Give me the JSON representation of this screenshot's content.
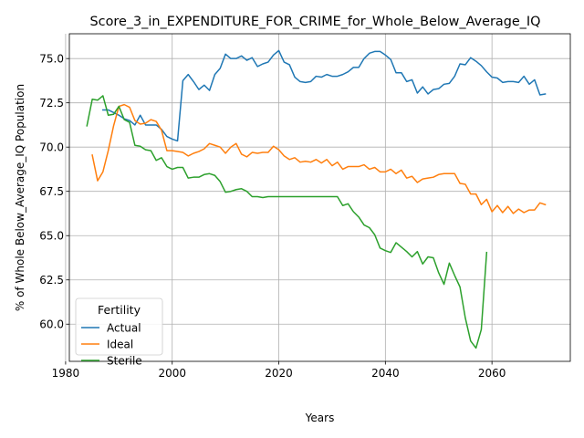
{
  "chart_data": {
    "type": "line",
    "title": "Score_3_in_EXPENDITURE_FOR_CRIME_for_Whole_Below_Average_IQ",
    "xlabel": "Years",
    "ylabel": "% of Whole Below_Average_IQ Population",
    "xlim": [
      1980.7,
      2074.7
    ],
    "ylim": [
      57.9,
      76.4
    ],
    "xticks": [
      1980,
      2000,
      2020,
      2040,
      2060
    ],
    "yticks": [
      60.0,
      62.5,
      65.0,
      67.5,
      70.0,
      72.5,
      75.0
    ],
    "grid": true,
    "legend": {
      "title": "Fertility",
      "placement": "lower-left"
    },
    "series": [
      {
        "name": "Actual",
        "color": "#1f77b4",
        "x": [
          1987,
          1988,
          1989,
          1990,
          1991,
          1992,
          1993,
          1994,
          1995,
          1996,
          1997,
          1998,
          1999,
          2000,
          2001,
          2002,
          2003,
          2004,
          2005,
          2006,
          2007,
          2008,
          2009,
          2010,
          2011,
          2012,
          2013,
          2014,
          2015,
          2016,
          2017,
          2018,
          2019,
          2020,
          2021,
          2022,
          2023,
          2024,
          2025,
          2026,
          2027,
          2028,
          2029,
          2030,
          2031,
          2032,
          2033,
          2034,
          2035,
          2036,
          2037,
          2038,
          2039,
          2040,
          2041,
          2042,
          2043,
          2044,
          2045,
          2046,
          2047,
          2048,
          2049,
          2050,
          2051,
          2052,
          2053,
          2054,
          2055,
          2056,
          2057,
          2058,
          2059,
          2060,
          2061,
          2062,
          2063,
          2064,
          2065,
          2066,
          2067,
          2068,
          2069,
          2070
        ],
        "values": [
          72.1,
          72.1,
          71.95,
          71.8,
          71.6,
          71.5,
          71.25,
          71.8,
          71.25,
          71.25,
          71.25,
          71.0,
          70.6,
          70.45,
          70.35,
          73.75,
          74.1,
          73.7,
          73.25,
          73.5,
          73.2,
          74.1,
          74.45,
          75.25,
          75.0,
          75.0,
          75.15,
          74.9,
          75.05,
          74.55,
          74.7,
          74.8,
          75.2,
          75.45,
          74.8,
          74.65,
          73.95,
          73.7,
          73.65,
          73.7,
          74.0,
          73.95,
          74.1,
          74.0,
          74.0,
          74.1,
          74.25,
          74.5,
          74.5,
          75.0,
          75.3,
          75.4,
          75.4,
          75.2,
          74.95,
          74.2,
          74.2,
          73.7,
          73.8,
          73.05,
          73.4,
          73.0,
          73.25,
          73.3,
          73.55,
          73.6,
          74.0,
          74.7,
          74.65,
          75.05,
          74.85,
          74.6,
          74.25,
          73.95,
          73.9,
          73.65,
          73.7,
          73.7,
          73.65,
          74.0,
          73.55,
          73.8,
          72.95,
          73.0
        ]
      },
      {
        "name": "Ideal",
        "color": "#ff7f0e",
        "x": [
          1985,
          1986,
          1987,
          1988,
          1989,
          1990,
          1991,
          1992,
          1993,
          1994,
          1995,
          1996,
          1997,
          1998,
          1999,
          2000,
          2001,
          2002,
          2003,
          2004,
          2005,
          2006,
          2007,
          2008,
          2009,
          2010,
          2011,
          2012,
          2013,
          2014,
          2015,
          2016,
          2017,
          2018,
          2019,
          2020,
          2021,
          2022,
          2023,
          2024,
          2025,
          2026,
          2027,
          2028,
          2029,
          2030,
          2031,
          2032,
          2033,
          2034,
          2035,
          2036,
          2037,
          2038,
          2039,
          2040,
          2041,
          2042,
          2043,
          2044,
          2045,
          2046,
          2047,
          2048,
          2049,
          2050,
          2051,
          2052,
          2053,
          2054,
          2055,
          2056,
          2057,
          2058,
          2059,
          2060,
          2061,
          2062,
          2063,
          2064,
          2065,
          2066,
          2067,
          2068,
          2069,
          2070
        ],
        "values": [
          69.55,
          68.1,
          68.6,
          69.8,
          71.2,
          72.3,
          72.4,
          72.25,
          71.5,
          71.3,
          71.35,
          71.55,
          71.45,
          70.95,
          69.8,
          69.8,
          69.75,
          69.7,
          69.5,
          69.65,
          69.75,
          69.9,
          70.2,
          70.1,
          70.0,
          69.65,
          70.0,
          70.2,
          69.6,
          69.45,
          69.7,
          69.65,
          69.7,
          69.7,
          70.05,
          69.85,
          69.5,
          69.3,
          69.4,
          69.15,
          69.2,
          69.15,
          69.3,
          69.1,
          69.3,
          68.95,
          69.15,
          68.75,
          68.9,
          68.9,
          68.9,
          69.0,
          68.75,
          68.85,
          68.6,
          68.6,
          68.75,
          68.5,
          68.7,
          68.25,
          68.35,
          68.0,
          68.2,
          68.25,
          68.3,
          68.45,
          68.5,
          68.5,
          68.5,
          67.95,
          67.9,
          67.35,
          67.35,
          66.75,
          67.05,
          66.35,
          66.7,
          66.3,
          66.65,
          66.25,
          66.5,
          66.3,
          66.45,
          66.45,
          66.85,
          66.75
        ]
      },
      {
        "name": "Sterile",
        "color": "#2ca02c",
        "x": [
          1984,
          1985,
          1986,
          1987,
          1988,
          1989,
          1990,
          1991,
          1992,
          1993,
          1994,
          1995,
          1996,
          1997,
          1998,
          1999,
          2000,
          2001,
          2002,
          2003,
          2004,
          2005,
          2006,
          2007,
          2008,
          2009,
          2010,
          2011,
          2012,
          2013,
          2014,
          2015,
          2016,
          2017,
          2018,
          2019,
          2020,
          2021,
          2022,
          2023,
          2024,
          2025,
          2026,
          2027,
          2028,
          2029,
          2030,
          2031,
          2032,
          2033,
          2034,
          2035,
          2036,
          2037,
          2038,
          2039,
          2040,
          2041,
          2042,
          2043,
          2044,
          2045,
          2046,
          2047,
          2048,
          2049,
          2050,
          2051,
          2052,
          2053,
          2054,
          2055,
          2056,
          2057,
          2058,
          2059
        ],
        "values": [
          71.2,
          72.7,
          72.65,
          72.9,
          71.8,
          71.85,
          72.3,
          71.55,
          71.4,
          70.1,
          70.05,
          69.85,
          69.8,
          69.25,
          69.4,
          68.9,
          68.75,
          68.85,
          68.85,
          68.25,
          68.3,
          68.3,
          68.45,
          68.5,
          68.4,
          68.05,
          67.45,
          67.5,
          67.6,
          67.65,
          67.5,
          67.2,
          67.2,
          67.15,
          67.2,
          67.2,
          67.2,
          67.2,
          67.2,
          67.2,
          67.2,
          67.2,
          67.2,
          67.2,
          67.2,
          67.2,
          67.2,
          67.2,
          66.7,
          66.8,
          66.35,
          66.05,
          65.6,
          65.45,
          65.05,
          64.3,
          64.15,
          64.05,
          64.6,
          64.35,
          64.1,
          63.8,
          64.1,
          63.4,
          63.8,
          63.75,
          62.9,
          62.25,
          63.45,
          62.75,
          62.1,
          60.35,
          59.05,
          58.65,
          59.7,
          64.05
        ]
      }
    ]
  }
}
